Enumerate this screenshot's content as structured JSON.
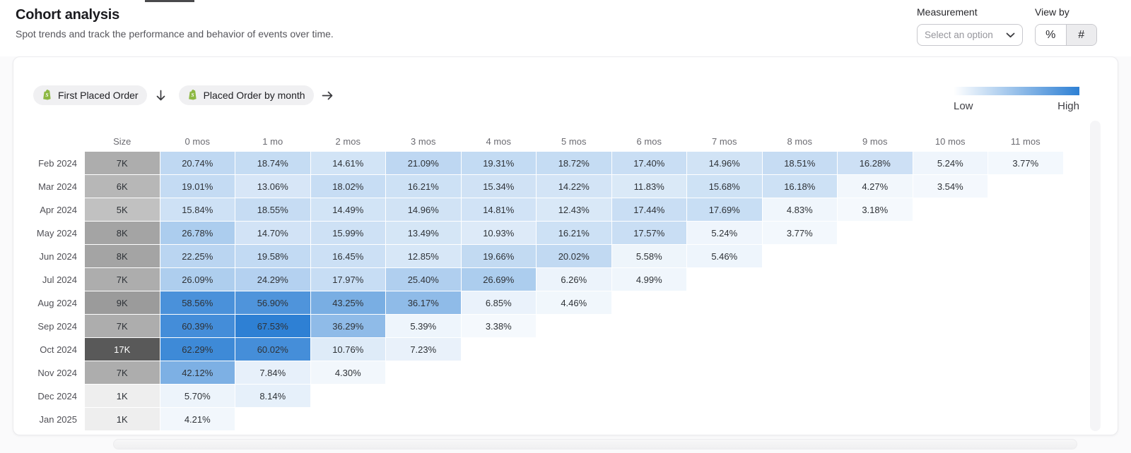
{
  "header": {
    "title": "Cohort analysis",
    "subtitle": "Spot trends and track the performance and behavior of events over time.",
    "measurement": {
      "label": "Measurement",
      "value": "Select an option"
    },
    "view_by": {
      "label": "View by",
      "percent": "%",
      "hash": "#"
    }
  },
  "controls": {
    "event1_label": "First Placed Order",
    "event2_label": "Placed Order by month"
  },
  "legend": {
    "low": "Low",
    "high": "High"
  },
  "chart_data": {
    "type": "heatmap",
    "title": "Cohort analysis",
    "columns": [
      "Size",
      "0 mos",
      "1 mo",
      "2 mos",
      "3 mos",
      "4 mos",
      "5 mos",
      "6 mos",
      "7 mos",
      "8 mos",
      "9 mos",
      "10 mos",
      "11 mos"
    ],
    "month_columns": 12,
    "value_unit": "%",
    "scale": {
      "value_max": 67.53,
      "size_max": 17,
      "blue_end": "#2E80D4",
      "grey_end": "#595959"
    },
    "rows": [
      {
        "label": "Feb 2024",
        "size": "7K",
        "size_value": 7,
        "values": [
          20.74,
          18.74,
          14.61,
          21.09,
          19.31,
          18.72,
          17.4,
          14.96,
          18.51,
          16.28,
          5.24,
          3.77
        ]
      },
      {
        "label": "Mar 2024",
        "size": "6K",
        "size_value": 6,
        "values": [
          19.01,
          13.06,
          18.02,
          16.21,
          15.34,
          14.22,
          11.83,
          15.68,
          16.18,
          4.27,
          3.54
        ]
      },
      {
        "label": "Apr 2024",
        "size": "5K",
        "size_value": 5,
        "values": [
          15.84,
          18.55,
          14.49,
          14.96,
          14.81,
          12.43,
          17.44,
          17.69,
          4.83,
          3.18
        ]
      },
      {
        "label": "May 2024",
        "size": "8K",
        "size_value": 8,
        "values": [
          26.78,
          14.7,
          15.99,
          13.49,
          10.93,
          16.21,
          17.57,
          5.24,
          3.77
        ]
      },
      {
        "label": "Jun 2024",
        "size": "8K",
        "size_value": 8,
        "values": [
          22.25,
          19.58,
          16.45,
          12.85,
          19.66,
          20.02,
          5.58,
          5.46
        ]
      },
      {
        "label": "Jul 2024",
        "size": "7K",
        "size_value": 7,
        "values": [
          26.09,
          24.29,
          17.97,
          25.4,
          26.69,
          6.26,
          4.99
        ]
      },
      {
        "label": "Aug 2024",
        "size": "9K",
        "size_value": 9,
        "values": [
          58.56,
          56.9,
          43.25,
          36.17,
          6.85,
          4.46
        ]
      },
      {
        "label": "Sep 2024",
        "size": "7K",
        "size_value": 7,
        "values": [
          60.39,
          67.53,
          36.29,
          5.39,
          3.38
        ]
      },
      {
        "label": "Oct 2024",
        "size": "17K",
        "size_value": 17,
        "values": [
          62.29,
          60.02,
          10.76,
          7.23
        ]
      },
      {
        "label": "Nov 2024",
        "size": "7K",
        "size_value": 7,
        "values": [
          42.12,
          7.84,
          4.3
        ]
      },
      {
        "label": "Dec 2024",
        "size": "1K",
        "size_value": 1,
        "values": [
          5.7,
          8.14
        ]
      },
      {
        "label": "Jan 2025",
        "size": "1K",
        "size_value": 1,
        "values": [
          4.21
        ]
      }
    ]
  }
}
